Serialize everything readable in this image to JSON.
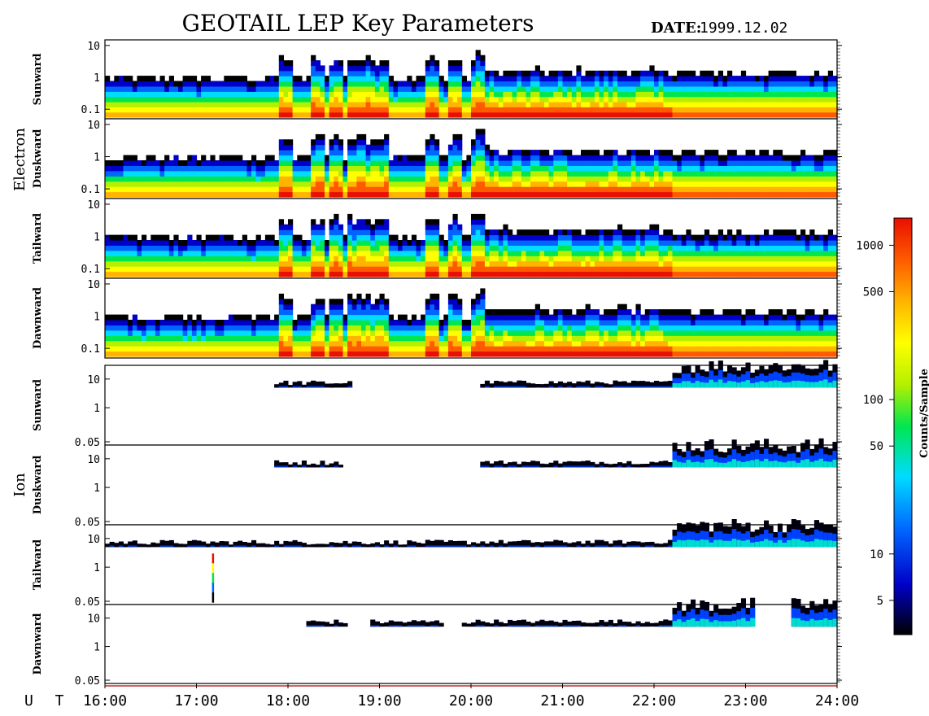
{
  "header": {
    "title": "GEOTAIL LEP Key Parameters",
    "date_label": "DATE:",
    "date_value": "1999.12.02"
  },
  "groups": [
    {
      "name": "Electron",
      "panels": [
        {
          "label": "Sunward",
          "ytick_labels": [
            "10",
            "1",
            "0.1"
          ]
        },
        {
          "label": "Duskward",
          "ytick_labels": [
            "10",
            "1",
            "0.1"
          ]
        },
        {
          "label": "Tailward",
          "ytick_labels": [
            "10",
            "1",
            "0.1"
          ]
        },
        {
          "label": "Dawnward",
          "ytick_labels": [
            "10",
            "1",
            "0.1"
          ]
        }
      ]
    },
    {
      "name": "Ion",
      "panels": [
        {
          "label": "Sunward",
          "ytick_labels": [
            "10",
            "1",
            "0.05"
          ]
        },
        {
          "label": "Duskward",
          "ytick_labels": [
            "10",
            "1",
            "0.05"
          ]
        },
        {
          "label": "Tailward",
          "ytick_labels": [
            "10",
            "1",
            "0.05"
          ]
        },
        {
          "label": "Dawnward",
          "ytick_labels": [
            "10",
            "1",
            "0.05"
          ]
        }
      ]
    }
  ],
  "chart_data": {
    "type": "heatmap",
    "x_axis_prefix": "U T",
    "x_tick_labels": [
      "16:00",
      "17:00",
      "18:00",
      "19:00",
      "20:00",
      "21:00",
      "22:00",
      "23:00",
      "24:00"
    ],
    "xlim_hours": [
      16,
      24
    ],
    "electron_ylim": [
      0.05,
      15
    ],
    "ion_ylim": [
      0.05,
      30
    ],
    "colorbar": {
      "label": "Counts/Sample",
      "tick_labels": [
        "1000",
        "500",
        "100",
        "50",
        "10",
        "5"
      ],
      "tick_values": [
        1000,
        500,
        100,
        50,
        10,
        5
      ],
      "range": [
        3,
        1500
      ],
      "scale": "log",
      "colors": [
        "#000000",
        "#0000c8",
        "#0064ff",
        "#00dcff",
        "#00e650",
        "#b4f000",
        "#ffff00",
        "#ffb400",
        "#ff5a00",
        "#e81000"
      ]
    },
    "electron_burst_times": [
      17.95,
      18.3,
      18.5,
      18.7,
      18.85,
      19.0,
      19.55,
      19.8,
      20.05
    ],
    "ion_observations": [
      {
        "panel": "Sunward",
        "intervals": [
          [
            17.85,
            18.7
          ],
          [
            20.1,
            22.0
          ],
          [
            22.0,
            23.6
          ],
          [
            23.6,
            24.0
          ]
        ]
      },
      {
        "panel": "Duskward",
        "intervals": [
          [
            17.85,
            18.6
          ],
          [
            20.1,
            22.0
          ],
          [
            22.0,
            23.1
          ],
          [
            23.1,
            24.0
          ]
        ]
      },
      {
        "panel": "Tailward",
        "intervals": [
          [
            16.0,
            19.6
          ],
          [
            19.6,
            22.0
          ],
          [
            22.0,
            23.1
          ],
          [
            23.1,
            24.0
          ]
        ]
      },
      {
        "panel": "Dawnward",
        "intervals": [
          [
            18.2,
            18.65
          ],
          [
            18.9,
            19.7
          ],
          [
            19.9,
            22.3
          ],
          [
            22.3,
            23.1
          ],
          [
            23.5,
            24.0
          ]
        ]
      }
    ]
  }
}
